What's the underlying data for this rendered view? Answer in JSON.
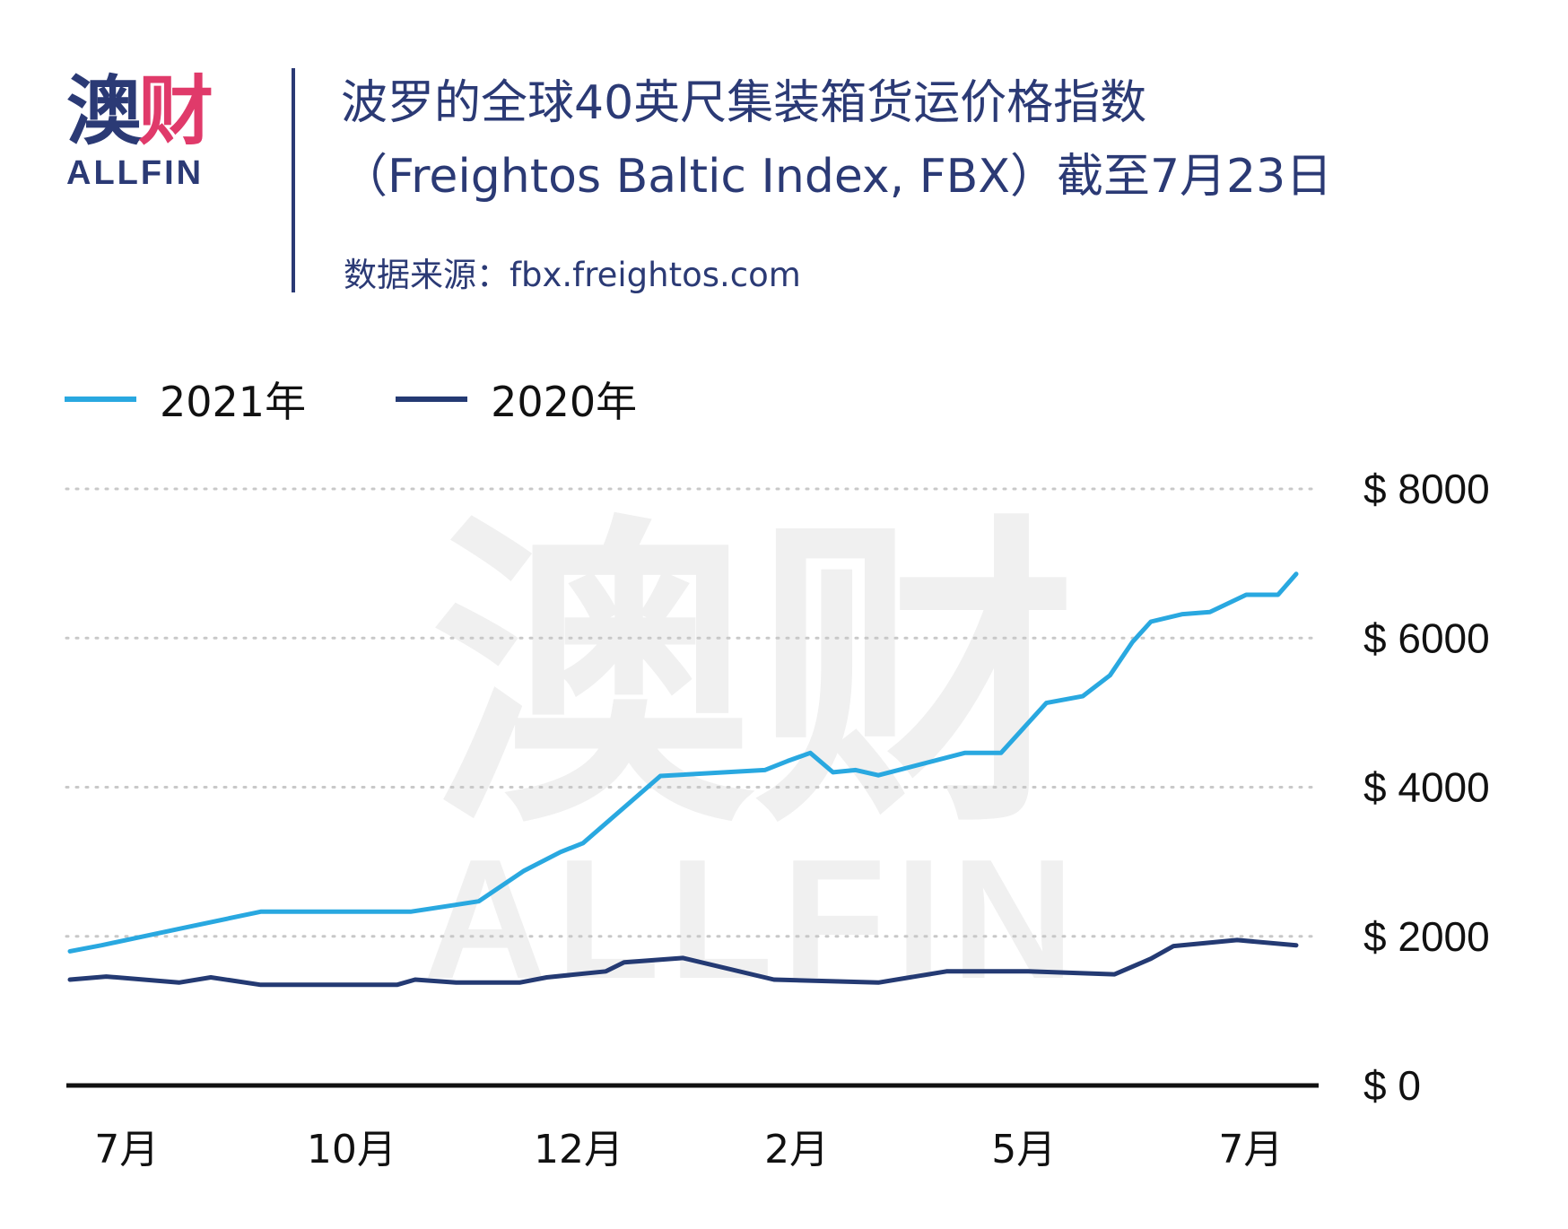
{
  "logo": {
    "cn_main": "澳",
    "cn_accent": "财",
    "en": "ALLFIN"
  },
  "header": {
    "title_line1": "波罗的全球40英尺集装箱货运价格指数",
    "title_line2": "（Freightos Baltic Index, FBX）截至7月23日",
    "source": "数据来源：fbx.freightos.com"
  },
  "watermark": {
    "cn": "澳财",
    "en": "ALLFIN"
  },
  "colors": {
    "primary": "#2b3a75",
    "accent": "#e03a6a",
    "series_2021": "#29a8e0",
    "series_2020": "#243a73"
  },
  "chart_data": {
    "type": "line",
    "x_range": [
      0,
      27
    ],
    "ylim": [
      0,
      8000
    ],
    "y_ticks": [
      0,
      2000,
      4000,
      6000,
      8000
    ],
    "y_tick_labels": [
      "$ 0",
      "$ 2000",
      "$ 4000",
      "$ 6000",
      "$ 8000"
    ],
    "x_ticks": [
      {
        "x": 1.25,
        "label": "7月"
      },
      {
        "x": 6.2,
        "label": "10月"
      },
      {
        "x": 11.2,
        "label": "12月"
      },
      {
        "x": 16.0,
        "label": "2月"
      },
      {
        "x": 21.0,
        "label": "5月"
      },
      {
        "x": 26.0,
        "label": "7月"
      }
    ],
    "grid": "horizontal-dotted",
    "legend_position": "top-left",
    "series": [
      {
        "name": "2021年",
        "color": "#29a8e0",
        "x": [
          0,
          0.7,
          2.4,
          4.2,
          7.5,
          9.0,
          10.0,
          10.8,
          11.3,
          13.0,
          15.3,
          15.8,
          16.3,
          16.8,
          17.3,
          17.8,
          19.7,
          20.5,
          21.5,
          22.3,
          22.9,
          23.4,
          23.8,
          24.5,
          25.1,
          25.9,
          26.6,
          27.0
        ],
        "y": [
          1800,
          1880,
          2100,
          2330,
          2330,
          2470,
          2880,
          3130,
          3250,
          4150,
          4230,
          4350,
          4460,
          4200,
          4230,
          4160,
          4460,
          4460,
          5130,
          5220,
          5500,
          5950,
          6220,
          6320,
          6350,
          6580,
          6580,
          6860
        ]
      },
      {
        "name": "2020年",
        "color": "#243a73",
        "x": [
          0,
          0.8,
          2.4,
          3.1,
          4.2,
          7.2,
          7.6,
          8.5,
          9.9,
          10.5,
          11.8,
          12.2,
          13.5,
          15.5,
          17.8,
          19.3,
          21.1,
          23.0,
          23.8,
          24.3,
          25.7,
          27.0
        ],
        "y": [
          1420,
          1460,
          1380,
          1450,
          1350,
          1350,
          1420,
          1380,
          1380,
          1450,
          1530,
          1650,
          1710,
          1420,
          1380,
          1530,
          1530,
          1490,
          1700,
          1870,
          1950,
          1880
        ]
      }
    ]
  }
}
